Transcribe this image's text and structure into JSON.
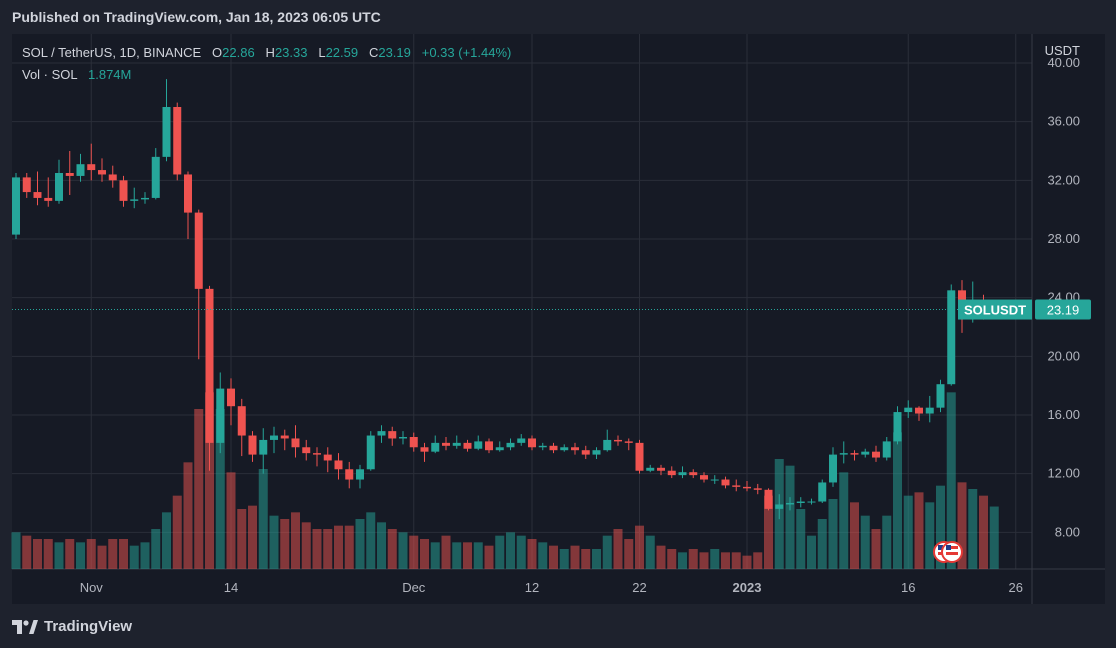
{
  "header": {
    "published": "Published on TradingView.com, Jan 18, 2023 06:05 UTC"
  },
  "legend": {
    "symbol": "SOL / TetherUS, 1D, BINANCE",
    "o_label": "O",
    "o_value": "22.86",
    "h_label": "H",
    "h_value": "23.33",
    "l_label": "L",
    "l_value": "22.59",
    "c_label": "C",
    "c_value": "23.19",
    "change": "+0.33 (+1.44%)",
    "vol_label": "Vol · SOL",
    "vol_value": "1.874M"
  },
  "price_label": {
    "symbol": "SOLUSDT",
    "value": "23.19"
  },
  "footer": {
    "brand": "TradingView"
  },
  "colors": {
    "up": "#26a69a",
    "down": "#ef5350",
    "bg": "#161a25",
    "grid": "#2a2e39"
  },
  "chart_data": {
    "type": "candlestick",
    "y_axis_title": "USDT",
    "ylim": [
      5.5,
      41.5
    ],
    "y_ticks": [
      8,
      12,
      16,
      20,
      24,
      28,
      32,
      36,
      40
    ],
    "y_tick_labels": [
      "8.00",
      "12.00",
      "16.00",
      "20.00",
      "24.00",
      "28.00",
      "32.00",
      "36.00",
      "40.00"
    ],
    "x_ticks": [
      {
        "label": "Nov",
        "index": 7,
        "bold": false
      },
      {
        "label": "14",
        "index": 20,
        "bold": false
      },
      {
        "label": "Dec",
        "index": 37,
        "bold": false
      },
      {
        "label": "12",
        "index": 48,
        "bold": false
      },
      {
        "label": "22",
        "index": 58,
        "bold": false
      },
      {
        "label": "2023",
        "index": 68,
        "bold": true
      },
      {
        "label": "16",
        "index": 83,
        "bold": false
      },
      {
        "label": "26",
        "index": 93,
        "bold": false
      }
    ],
    "last_price": 23.19,
    "volume_max": 3.0,
    "candles": [
      [
        28.3,
        32.2,
        28.0,
        32.5,
        1.1
      ],
      [
        32.2,
        31.2,
        30.8,
        32.5,
        1.0
      ],
      [
        31.2,
        30.8,
        30.3,
        32.6,
        0.9
      ],
      [
        30.8,
        30.6,
        30.2,
        32.2,
        0.9
      ],
      [
        30.6,
        32.5,
        30.4,
        33.4,
        0.8
      ],
      [
        32.5,
        32.3,
        31.0,
        34.0,
        0.9
      ],
      [
        32.3,
        33.1,
        31.9,
        33.8,
        0.8
      ],
      [
        33.1,
        32.7,
        32.0,
        34.5,
        0.9
      ],
      [
        32.7,
        32.4,
        31.9,
        33.5,
        0.7
      ],
      [
        32.4,
        32.0,
        31.5,
        33.0,
        0.9
      ],
      [
        32.0,
        30.6,
        30.2,
        32.3,
        0.9
      ],
      [
        30.6,
        30.7,
        30.1,
        31.5,
        0.7
      ],
      [
        30.7,
        30.8,
        30.4,
        31.2,
        0.8
      ],
      [
        30.8,
        33.6,
        30.7,
        34.2,
        1.2
      ],
      [
        33.6,
        37.0,
        33.3,
        38.9,
        1.7
      ],
      [
        37.0,
        32.4,
        32.0,
        37.3,
        2.2
      ],
      [
        32.4,
        29.8,
        28.0,
        32.6,
        3.2
      ],
      [
        29.8,
        24.6,
        19.8,
        30.0,
        4.8
      ],
      [
        24.6,
        14.1,
        12.2,
        24.8,
        5.3
      ],
      [
        14.1,
        17.8,
        13.4,
        18.9,
        4.8
      ],
      [
        17.8,
        16.6,
        15.3,
        18.5,
        2.9
      ],
      [
        16.6,
        14.6,
        13.2,
        17.1,
        1.8
      ],
      [
        14.6,
        13.3,
        12.8,
        14.9,
        1.9
      ],
      [
        13.3,
        14.3,
        12.0,
        15.1,
        3.0
      ],
      [
        14.3,
        14.6,
        13.4,
        15.2,
        1.6
      ],
      [
        14.6,
        14.4,
        13.6,
        15.0,
        1.5
      ],
      [
        14.4,
        13.8,
        13.1,
        15.3,
        1.7
      ],
      [
        13.8,
        13.4,
        12.9,
        14.3,
        1.4
      ],
      [
        13.4,
        13.3,
        12.5,
        13.8,
        1.2
      ],
      [
        13.3,
        12.9,
        12.1,
        13.8,
        1.2
      ],
      [
        12.9,
        12.3,
        11.6,
        13.4,
        1.3
      ],
      [
        12.3,
        11.6,
        11.0,
        12.8,
        1.3
      ],
      [
        11.6,
        12.3,
        11.0,
        12.6,
        1.5
      ],
      [
        12.3,
        14.6,
        12.2,
        14.9,
        1.7
      ],
      [
        14.6,
        14.9,
        14.1,
        15.3,
        1.4
      ],
      [
        14.9,
        14.4,
        13.9,
        15.2,
        1.2
      ],
      [
        14.4,
        14.5,
        14.0,
        14.9,
        1.1
      ],
      [
        14.5,
        13.8,
        13.5,
        14.8,
        1.0
      ],
      [
        13.8,
        13.5,
        12.8,
        14.1,
        0.9
      ],
      [
        13.5,
        14.1,
        13.4,
        14.6,
        0.8
      ],
      [
        14.1,
        13.9,
        13.6,
        14.5,
        1.0
      ],
      [
        13.9,
        14.1,
        13.7,
        14.6,
        0.8
      ],
      [
        14.1,
        13.7,
        13.5,
        14.3,
        0.8
      ],
      [
        13.7,
        14.2,
        13.6,
        14.6,
        0.8
      ],
      [
        14.2,
        13.6,
        13.4,
        14.4,
        0.7
      ],
      [
        13.6,
        13.8,
        13.5,
        14.2,
        1.0
      ],
      [
        13.8,
        14.1,
        13.6,
        14.4,
        1.1
      ],
      [
        14.1,
        14.4,
        13.9,
        14.7,
        1.0
      ],
      [
        14.4,
        13.8,
        13.6,
        14.6,
        0.9
      ],
      [
        13.8,
        13.9,
        13.6,
        14.1,
        0.8
      ],
      [
        13.9,
        13.6,
        13.4,
        14.1,
        0.7
      ],
      [
        13.6,
        13.8,
        13.5,
        14.0,
        0.6
      ],
      [
        13.8,
        13.6,
        13.3,
        14.1,
        0.7
      ],
      [
        13.6,
        13.3,
        13.0,
        13.9,
        0.6
      ],
      [
        13.3,
        13.6,
        13.0,
        13.8,
        0.6
      ],
      [
        13.6,
        14.3,
        13.5,
        15.0,
        1.0
      ],
      [
        14.3,
        14.2,
        13.9,
        14.6,
        1.2
      ],
      [
        14.2,
        14.1,
        13.6,
        14.4,
        0.9
      ],
      [
        14.1,
        12.2,
        12.0,
        14.3,
        1.3
      ],
      [
        12.2,
        12.4,
        12.1,
        12.6,
        1.0
      ],
      [
        12.4,
        12.2,
        11.9,
        12.6,
        0.7
      ],
      [
        12.2,
        11.9,
        11.7,
        12.5,
        0.6
      ],
      [
        11.9,
        12.1,
        11.7,
        12.5,
        0.5
      ],
      [
        12.1,
        11.9,
        11.7,
        12.3,
        0.6
      ],
      [
        11.9,
        11.6,
        11.4,
        12.1,
        0.5
      ],
      [
        11.6,
        11.6,
        11.3,
        11.9,
        0.6
      ],
      [
        11.6,
        11.2,
        11.0,
        11.8,
        0.5
      ],
      [
        11.2,
        11.1,
        10.8,
        11.6,
        0.5
      ],
      [
        11.1,
        11.0,
        10.8,
        11.5,
        0.4
      ],
      [
        11.0,
        10.9,
        10.6,
        11.3,
        0.5
      ],
      [
        10.9,
        9.6,
        9.5,
        11.0,
        2.2
      ],
      [
        9.6,
        9.9,
        8.9,
        10.6,
        3.3
      ],
      [
        9.9,
        10.0,
        9.5,
        10.4,
        3.1
      ],
      [
        10.0,
        10.1,
        9.7,
        10.4,
        1.8
      ],
      [
        10.1,
        10.1,
        9.9,
        10.3,
        1.0
      ],
      [
        10.1,
        11.4,
        10.0,
        11.6,
        1.5
      ],
      [
        11.4,
        13.3,
        11.1,
        13.8,
        2.1
      ],
      [
        13.3,
        13.4,
        12.7,
        14.2,
        2.9
      ],
      [
        13.4,
        13.3,
        12.9,
        13.6,
        2.0
      ],
      [
        13.3,
        13.5,
        13.1,
        13.7,
        1.6
      ],
      [
        13.5,
        13.1,
        12.8,
        13.9,
        1.2
      ],
      [
        13.1,
        14.2,
        12.9,
        14.5,
        1.6
      ],
      [
        14.2,
        16.2,
        14.0,
        16.6,
        4.1
      ],
      [
        16.2,
        16.5,
        15.8,
        17.0,
        2.2
      ],
      [
        16.5,
        16.1,
        15.6,
        16.6,
        2.3
      ],
      [
        16.1,
        16.5,
        15.5,
        17.3,
        2.0
      ],
      [
        16.5,
        18.1,
        16.2,
        18.4,
        2.5
      ],
      [
        18.1,
        24.5,
        18.0,
        24.9,
        5.3
      ],
      [
        24.5,
        23.1,
        21.6,
        25.2,
        2.6
      ],
      [
        23.1,
        23.8,
        22.3,
        25.1,
        2.4
      ],
      [
        23.8,
        22.9,
        22.5,
        24.2,
        2.2
      ],
      [
        22.86,
        23.19,
        22.59,
        23.33,
        1.874
      ]
    ]
  }
}
